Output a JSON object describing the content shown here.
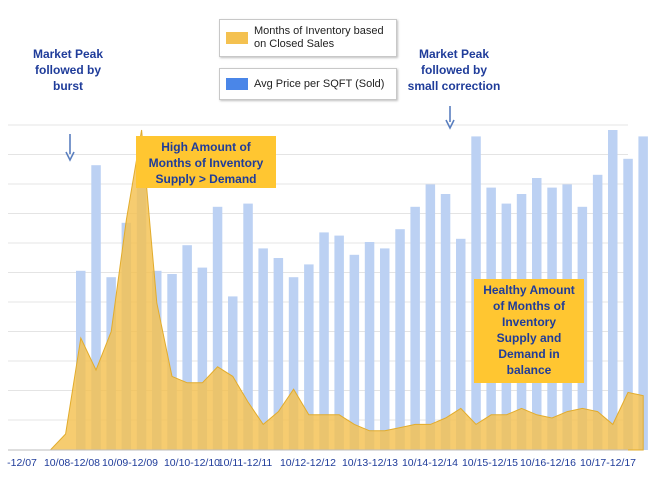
{
  "chart_data": {
    "type": "bar",
    "x_tick_labels": [
      "-12/07",
      "10/08-12/08",
      "10/09-12/09",
      "10/10-12/10",
      "10/11-12/11",
      "10/12-12/12",
      "10/13-12/13",
      "10/14-12/14",
      "10/15-12/15",
      "10/16-12/16",
      "10/17-12/17"
    ],
    "series": [
      {
        "name": "Avg Price per SQFT (Sold)",
        "type": "bar",
        "color": "#bcd1f3",
        "values": [
          0,
          0,
          0,
          0,
          0.56,
          0.89,
          0.54,
          0.71,
          0.91,
          0.56,
          0.55,
          0.64,
          0.57,
          0.76,
          0.48,
          0.77,
          0.63,
          0.6,
          0.54,
          0.58,
          0.68,
          0.67,
          0.61,
          0.65,
          0.63,
          0.69,
          0.76,
          0.83,
          0.8,
          0.66,
          0.98,
          0.82,
          0.77,
          0.8,
          0.85,
          0.82,
          0.83,
          0.76,
          0.86,
          1.0,
          0.91,
          0.98
        ]
      },
      {
        "name": "Months of Inventory based on Closed Sales",
        "type": "area",
        "color": "#f4c150",
        "values": [
          0,
          0,
          0,
          0.05,
          0.35,
          0.25,
          0.37,
          0.72,
          1.0,
          0.46,
          0.23,
          0.21,
          0.21,
          0.26,
          0.23,
          0.15,
          0.08,
          0.12,
          0.19,
          0.11,
          0.11,
          0.11,
          0.08,
          0.06,
          0.06,
          0.07,
          0.08,
          0.08,
          0.1,
          0.13,
          0.08,
          0.11,
          0.11,
          0.13,
          0.11,
          0.1,
          0.12,
          0.13,
          0.12,
          0.08,
          0.18,
          0.17
        ]
      }
    ],
    "annotations": [
      {
        "id": "peak1",
        "text_lines": [
          "Market Peak",
          "followed by",
          "burst"
        ]
      },
      {
        "id": "peak2",
        "text_lines": [
          "Market Peak",
          "followed by",
          "small correction"
        ]
      },
      {
        "id": "high",
        "text_lines": [
          "High Amount of",
          "Months of Inventory",
          "Supply > Demand"
        ]
      },
      {
        "id": "healthy",
        "text_lines": [
          "Healthy Amount",
          "of Months of",
          "Inventory",
          "Supply and",
          "Demand in",
          "balance"
        ]
      }
    ],
    "grid": true,
    "title": "",
    "xlabel": "",
    "ylabel": ""
  },
  "legend": {
    "area_label": "Months of Inventory based on Closed Sales",
    "bar_label": "Avg Price per SQFT (Sold)"
  },
  "colors": {
    "bar": "#bcd1f3",
    "area": "#f4c150",
    "area_stroke": "#e2ac2c",
    "annotation_box": "#ffc631",
    "annotation_text": "#1f3c9a",
    "arrow": "#5a7fbf",
    "legend_bar_swatch": "#4a86e8",
    "legend_area_swatch": "#f4c150"
  }
}
